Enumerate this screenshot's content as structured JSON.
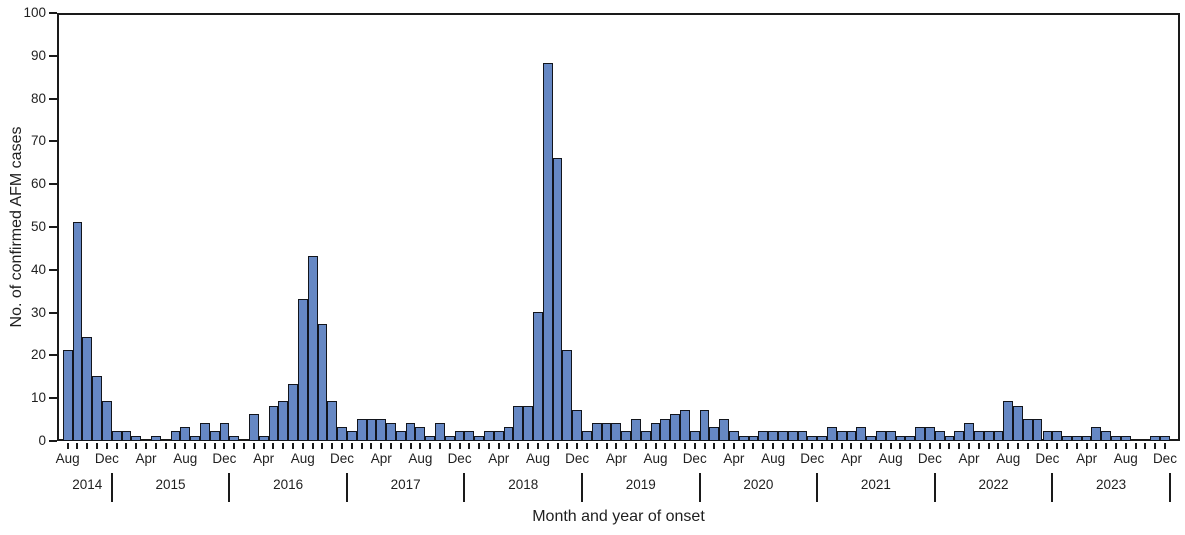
{
  "chart_data": {
    "type": "bar",
    "title": "",
    "xlabel": "Month and year of onset",
    "ylabel": "No. of confirmed AFM cases",
    "ylim": [
      0,
      100
    ],
    "ytick_step": 10,
    "grid": "off",
    "legend": "none",
    "x_month_tick_labels_shown": [
      "Apr",
      "Aug",
      "Dec"
    ],
    "x_range": "Aug 2014 - Dec 2023",
    "years": [
      {
        "year": "2014",
        "first_month": "Aug",
        "values": [
          21,
          51,
          24,
          15,
          9
        ]
      },
      {
        "year": "2015",
        "first_month": "Jan",
        "values": [
          2,
          2,
          1,
          0,
          1,
          0,
          2,
          3,
          1,
          4,
          2,
          4
        ]
      },
      {
        "year": "2016",
        "first_month": "Jan",
        "values": [
          1,
          0,
          6,
          1,
          8,
          9,
          13,
          33,
          43,
          27,
          9,
          3
        ]
      },
      {
        "year": "2017",
        "first_month": "Jan",
        "values": [
          2,
          5,
          5,
          5,
          4,
          2,
          4,
          3,
          1,
          4,
          1,
          2
        ]
      },
      {
        "year": "2018",
        "first_month": "Jan",
        "values": [
          2,
          1,
          2,
          2,
          3,
          8,
          8,
          30,
          88,
          66,
          21,
          7
        ]
      },
      {
        "year": "2019",
        "first_month": "Jan",
        "values": [
          2,
          4,
          4,
          4,
          2,
          5,
          2,
          4,
          5,
          6,
          7,
          2
        ]
      },
      {
        "year": "2020",
        "first_month": "Jan",
        "values": [
          7,
          3,
          5,
          2,
          1,
          1,
          2,
          2,
          2,
          2,
          2,
          1
        ]
      },
      {
        "year": "2021",
        "first_month": "Jan",
        "values": [
          1,
          3,
          2,
          2,
          3,
          1,
          2,
          2,
          1,
          1,
          3,
          3
        ]
      },
      {
        "year": "2022",
        "first_month": "Jan",
        "values": [
          2,
          1,
          2,
          4,
          2,
          2,
          2,
          9,
          8,
          5,
          5,
          2
        ]
      },
      {
        "year": "2023",
        "first_month": "Jan",
        "values": [
          2,
          1,
          1,
          1,
          3,
          2,
          1,
          1,
          0,
          0,
          1,
          1
        ]
      }
    ],
    "colors": {
      "bar_fill": "#6688c4",
      "bar_border": "#12151c",
      "axis": "#1a1a1a",
      "text": "#1f1f1f",
      "background": "#ffffff"
    }
  }
}
